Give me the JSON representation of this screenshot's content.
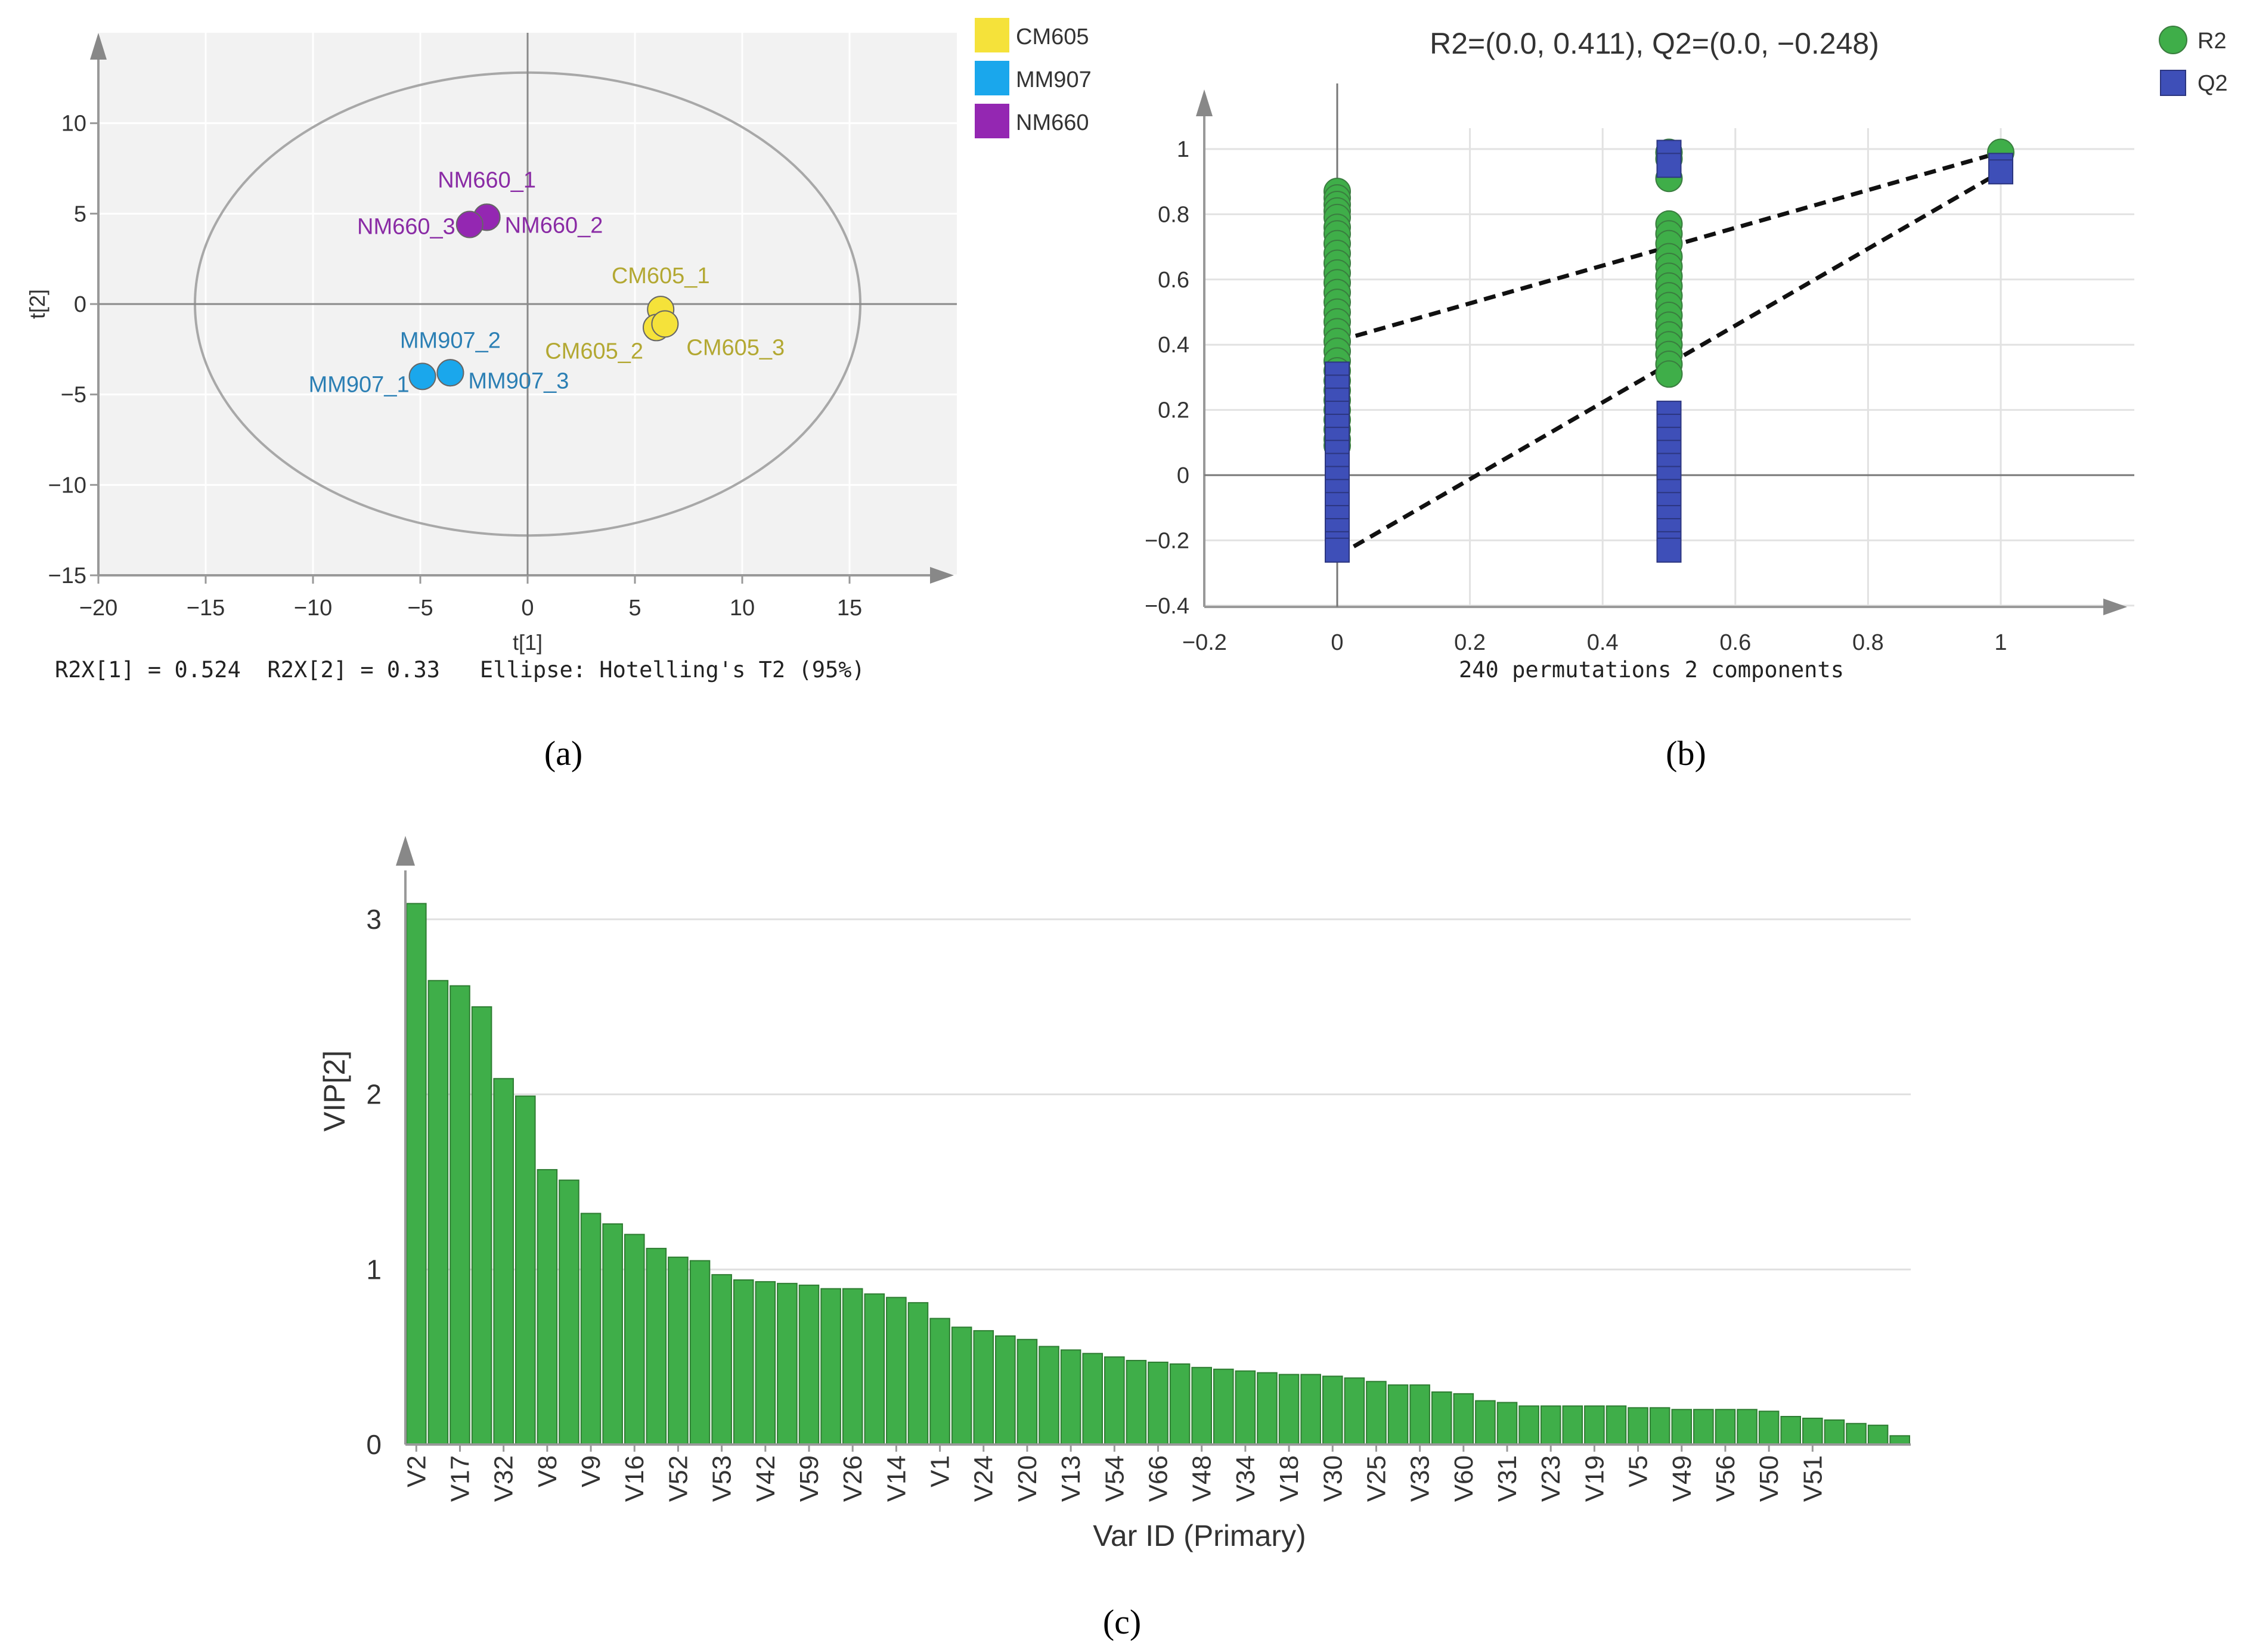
{
  "colors": {
    "cm605": "#f5e23a",
    "cm605_label": "#b3a832",
    "mm907": "#1aa7ec",
    "mm907_label": "#2b7fb4",
    "nm660": "#9427b2",
    "nm660_label": "#8a2ba5",
    "r2": "#3fae49",
    "q2": "#3e4fb8",
    "bar": "#3fae49"
  },
  "panel_labels": {
    "a": "(a)",
    "b": "(b)",
    "c": "(c)"
  },
  "chart_data": [
    {
      "id": "a",
      "type": "scatter",
      "title": "",
      "xlabel": "t[1]",
      "ylabel": "t[2]",
      "xlim": [
        -20,
        20
      ],
      "ylim": [
        -15,
        15
      ],
      "xticks": [
        "−20",
        "−15",
        "−10",
        "−5",
        "0",
        "5",
        "10",
        "15"
      ],
      "xtick_values": [
        -20,
        -15,
        -10,
        -5,
        0,
        5,
        10,
        15
      ],
      "yticks": [
        "10",
        "5",
        "0",
        "−5",
        "−10",
        "−15"
      ],
      "ytick_values": [
        10,
        5,
        0,
        -5,
        -10,
        -15
      ],
      "footer": "R2X[1] = 0.524  R2X[2] = 0.33   Ellipse: Hotelling's T2 (95%)",
      "ellipse": {
        "cx": 0,
        "cy": 0,
        "rx": 15.5,
        "ry": 12.8
      },
      "legend": [
        {
          "name": "CM605",
          "color": "#f5e23a"
        },
        {
          "name": "MM907",
          "color": "#1aa7ec"
        },
        {
          "name": "NM660",
          "color": "#9427b2"
        }
      ],
      "points": [
        {
          "label": "CM605_1",
          "group": "CM605",
          "x": 6.2,
          "y": -0.3
        },
        {
          "label": "CM605_2",
          "group": "CM605",
          "x": 6.0,
          "y": -1.3
        },
        {
          "label": "CM605_3",
          "group": "CM605",
          "x": 6.4,
          "y": -1.1
        },
        {
          "label": "MM907_1",
          "group": "MM907",
          "x": -4.9,
          "y": -4.0
        },
        {
          "label": "MM907_2",
          "group": "MM907",
          "x": -3.6,
          "y": -3.8
        },
        {
          "label": "MM907_3",
          "group": "MM907",
          "x": -3.6,
          "y": -3.8
        },
        {
          "label": "NM660_1",
          "group": "NM660",
          "x": -1.9,
          "y": 4.8
        },
        {
          "label": "NM660_2",
          "group": "NM660",
          "x": -1.9,
          "y": 4.8
        },
        {
          "label": "NM660_3",
          "group": "NM660",
          "x": -2.7,
          "y": 4.4
        }
      ]
    },
    {
      "id": "b",
      "type": "scatter",
      "title": "R2=(0.0, 0.411), Q2=(0.0, −0.248)",
      "xlabel": "240 permutations 2 components",
      "ylabel": "",
      "xlim": [
        -0.2,
        1.2
      ],
      "ylim": [
        -0.4,
        1.1
      ],
      "xticks": [
        "−0.2",
        "0",
        "0.2",
        "0.4",
        "0.6",
        "0.8",
        "1"
      ],
      "xtick_values": [
        -0.2,
        0,
        0.2,
        0.4,
        0.6,
        0.8,
        1
      ],
      "yticks": [
        "1",
        "0.8",
        "0.6",
        "0.4",
        "0.2",
        "0",
        "−0.2",
        "−0.4"
      ],
      "ytick_values": [
        1,
        0.8,
        0.6,
        0.4,
        0.2,
        0,
        -0.2,
        -0.4
      ],
      "legend": [
        {
          "name": "R2",
          "color": "#3fae49",
          "marker": "circle"
        },
        {
          "name": "Q2",
          "color": "#3e4fb8",
          "marker": "square"
        }
      ],
      "series": [
        {
          "name": "R2",
          "points": [
            [
              0,
              0.87
            ],
            [
              0,
              0.85
            ],
            [
              0,
              0.83
            ],
            [
              0,
              0.81
            ],
            [
              0,
              0.79
            ],
            [
              0,
              0.76
            ],
            [
              0,
              0.74
            ],
            [
              0,
              0.71
            ],
            [
              0,
              0.68
            ],
            [
              0,
              0.65
            ],
            [
              0,
              0.62
            ],
            [
              0,
              0.59
            ],
            [
              0,
              0.56
            ],
            [
              0,
              0.53
            ],
            [
              0,
              0.5
            ],
            [
              0,
              0.47
            ],
            [
              0,
              0.44
            ],
            [
              0,
              0.41
            ],
            [
              0,
              0.38
            ],
            [
              0,
              0.35
            ],
            [
              0,
              0.32
            ],
            [
              0,
              0.29
            ],
            [
              0,
              0.26
            ],
            [
              0,
              0.23
            ],
            [
              0,
              0.2
            ],
            [
              0,
              0.17
            ],
            [
              0,
              0.14
            ],
            [
              0,
              0.11
            ],
            [
              0,
              0.09
            ],
            [
              0.5,
              0.99
            ],
            [
              0.5,
              0.97
            ],
            [
              0.5,
              0.91
            ],
            [
              0.5,
              0.77
            ],
            [
              0.5,
              0.74
            ],
            [
              0.5,
              0.71
            ],
            [
              0.5,
              0.67
            ],
            [
              0.5,
              0.64
            ],
            [
              0.5,
              0.61
            ],
            [
              0.5,
              0.58
            ],
            [
              0.5,
              0.55
            ],
            [
              0.5,
              0.52
            ],
            [
              0.5,
              0.49
            ],
            [
              0.5,
              0.46
            ],
            [
              0.5,
              0.43
            ],
            [
              0.5,
              0.4
            ],
            [
              0.5,
              0.37
            ],
            [
              0.5,
              0.34
            ],
            [
              0.5,
              0.31
            ],
            [
              1,
              0.99
            ]
          ]
        },
        {
          "name": "Q2",
          "points": [
            [
              0,
              0.31
            ],
            [
              0,
              0.27
            ],
            [
              0,
              0.23
            ],
            [
              0,
              0.19
            ],
            [
              0,
              0.15
            ],
            [
              0,
              0.11
            ],
            [
              0,
              0.07
            ],
            [
              0,
              0.03
            ],
            [
              0,
              -0.01
            ],
            [
              0,
              -0.05
            ],
            [
              0,
              -0.09
            ],
            [
              0,
              -0.13
            ],
            [
              0,
              -0.17
            ],
            [
              0,
              -0.21
            ],
            [
              0,
              -0.23
            ],
            [
              0.5,
              0.99
            ],
            [
              0.5,
              0.95
            ],
            [
              0.5,
              0.19
            ],
            [
              0.5,
              0.15
            ],
            [
              0.5,
              0.11
            ],
            [
              0.5,
              0.07
            ],
            [
              0.5,
              0.03
            ],
            [
              0.5,
              -0.01
            ],
            [
              0.5,
              -0.05
            ],
            [
              0.5,
              -0.09
            ],
            [
              0.5,
              -0.13
            ],
            [
              0.5,
              -0.17
            ],
            [
              0.5,
              -0.21
            ],
            [
              0.5,
              -0.23
            ],
            [
              1,
              0.95
            ],
            [
              1,
              0.93
            ]
          ]
        }
      ],
      "regression_lines": [
        {
          "name": "R2",
          "from": [
            0,
            0.411
          ],
          "to": [
            1,
            0.99
          ]
        },
        {
          "name": "Q2",
          "from": [
            0,
            -0.248
          ],
          "to": [
            1,
            0.93
          ]
        }
      ]
    },
    {
      "id": "c",
      "type": "bar",
      "title": "",
      "xlabel": "Var ID (Primary)",
      "ylabel": "VIP[2]",
      "ylim": [
        0,
        3.25
      ],
      "yticks": [
        "3",
        "2",
        "1",
        "0"
      ],
      "ytick_values": [
        3,
        2,
        1,
        0
      ],
      "tick_every": 2,
      "shown_labels": [
        "V2",
        "V17",
        "V32",
        "V8",
        "V9",
        "V16",
        "V52",
        "V53",
        "V42",
        "V59",
        "V26",
        "V14",
        "V1",
        "V24",
        "V20",
        "V13",
        "V54",
        "V66",
        "V48",
        "V34",
        "V18",
        "V30",
        "V25",
        "V33",
        "V60",
        "V31",
        "V23",
        "V19",
        "V5",
        "V49",
        "V56",
        "V50",
        "V51"
      ],
      "values": [
        3.09,
        2.65,
        2.62,
        2.5,
        2.09,
        1.99,
        1.57,
        1.51,
        1.32,
        1.26,
        1.2,
        1.12,
        1.07,
        1.05,
        0.97,
        0.94,
        0.93,
        0.92,
        0.91,
        0.89,
        0.89,
        0.86,
        0.84,
        0.81,
        0.72,
        0.67,
        0.65,
        0.62,
        0.6,
        0.56,
        0.54,
        0.52,
        0.5,
        0.48,
        0.47,
        0.46,
        0.44,
        0.43,
        0.42,
        0.41,
        0.4,
        0.4,
        0.39,
        0.38,
        0.36,
        0.34,
        0.34,
        0.3,
        0.29,
        0.25,
        0.24,
        0.22,
        0.22,
        0.22,
        0.22,
        0.22,
        0.21,
        0.21,
        0.2,
        0.2,
        0.2,
        0.2,
        0.19,
        0.16,
        0.15,
        0.14,
        0.12,
        0.11,
        0.05
      ]
    }
  ]
}
